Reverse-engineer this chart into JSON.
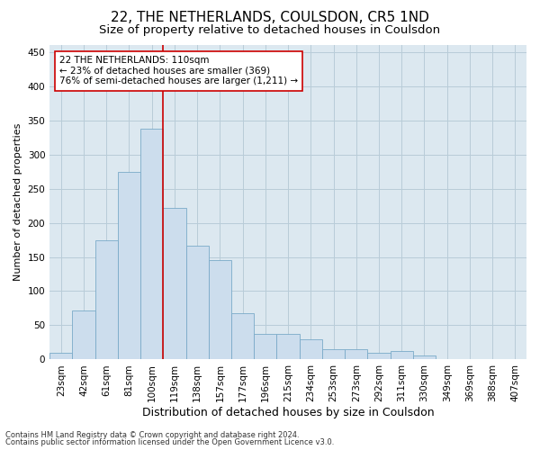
{
  "title": "22, THE NETHERLANDS, COULSDON, CR5 1ND",
  "subtitle": "Size of property relative to detached houses in Coulsdon",
  "xlabel": "Distribution of detached houses by size in Coulsdon",
  "ylabel": "Number of detached properties",
  "footnote1": "Contains HM Land Registry data © Crown copyright and database right 2024.",
  "footnote2": "Contains public sector information licensed under the Open Government Licence v3.0.",
  "bar_labels": [
    "23sqm",
    "42sqm",
    "61sqm",
    "81sqm",
    "100sqm",
    "119sqm",
    "138sqm",
    "157sqm",
    "177sqm",
    "196sqm",
    "215sqm",
    "234sqm",
    "253sqm",
    "273sqm",
    "292sqm",
    "311sqm",
    "330sqm",
    "349sqm",
    "369sqm",
    "388sqm",
    "407sqm"
  ],
  "bar_values": [
    10,
    72,
    175,
    275,
    338,
    222,
    167,
    145,
    68,
    37,
    37,
    30,
    15,
    15,
    10,
    12,
    6,
    0,
    0,
    0,
    0
  ],
  "bar_color": "#ccdded",
  "bar_edge_color": "#7aaac8",
  "grid_color": "#b8ccd8",
  "background_color": "#dce8f0",
  "vline_x_idx": 4,
  "vline_color": "#cc0000",
  "annotation_text": "22 THE NETHERLANDS: 110sqm\n← 23% of detached houses are smaller (369)\n76% of semi-detached houses are larger (1,211) →",
  "annotation_box_color": "#ffffff",
  "annotation_box_edge": "#cc0000",
  "ylim": [
    0,
    460
  ],
  "yticks": [
    0,
    50,
    100,
    150,
    200,
    250,
    300,
    350,
    400,
    450
  ],
  "title_fontsize": 11,
  "subtitle_fontsize": 9.5,
  "xlabel_fontsize": 9,
  "ylabel_fontsize": 8,
  "tick_fontsize": 7.5,
  "annot_fontsize": 7.5
}
